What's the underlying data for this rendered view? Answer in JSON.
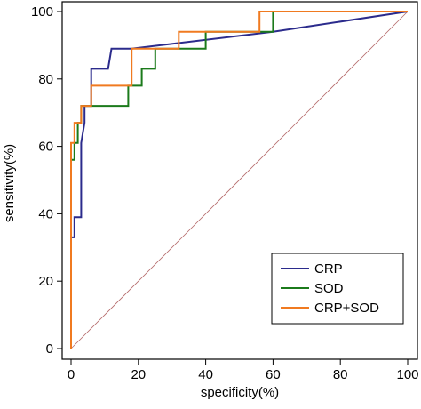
{
  "chart_data": {
    "type": "line",
    "title": "",
    "xlabel": "specificity(%)",
    "ylabel": "sensitivity(%)",
    "xlim": [
      0,
      100
    ],
    "ylim": [
      0,
      100
    ],
    "xticks": [
      0,
      20,
      40,
      60,
      80,
      100
    ],
    "yticks": [
      0,
      20,
      40,
      60,
      80,
      100
    ],
    "grid": false,
    "legend_position": "bottom-right",
    "reference_line": {
      "color": "#b56b6b",
      "x": [
        0,
        100
      ],
      "y": [
        0,
        100
      ]
    },
    "series": [
      {
        "name": "CRP",
        "color": "#2b2b8c",
        "x": [
          0,
          0,
          1,
          1,
          3,
          3,
          4,
          4,
          6,
          6,
          11,
          12,
          18,
          60,
          100
        ],
        "y": [
          0,
          33,
          33,
          39,
          39,
          61,
          67,
          72,
          72,
          83,
          83,
          89,
          89,
          94,
          100
        ]
      },
      {
        "name": "SOD",
        "color": "#1b7a1b",
        "x": [
          0,
          0,
          1,
          1,
          2,
          2,
          3,
          3,
          5,
          5,
          17,
          17,
          21,
          21,
          25,
          25,
          36,
          40,
          40,
          60,
          60,
          100
        ],
        "y": [
          0,
          56,
          56,
          61,
          61,
          67,
          67,
          72,
          72,
          72,
          72,
          78,
          78,
          83,
          83,
          89,
          89,
          89,
          94,
          94,
          100,
          100
        ]
      },
      {
        "name": "CRP+SOD",
        "color": "#f07a20",
        "x": [
          0,
          0,
          1,
          1,
          3,
          3,
          6,
          6,
          18,
          18,
          32,
          32,
          56,
          56,
          100
        ],
        "y": [
          0,
          61,
          61,
          67,
          67,
          72,
          72,
          78,
          78,
          89,
          89,
          94,
          94,
          100,
          100
        ]
      }
    ]
  }
}
